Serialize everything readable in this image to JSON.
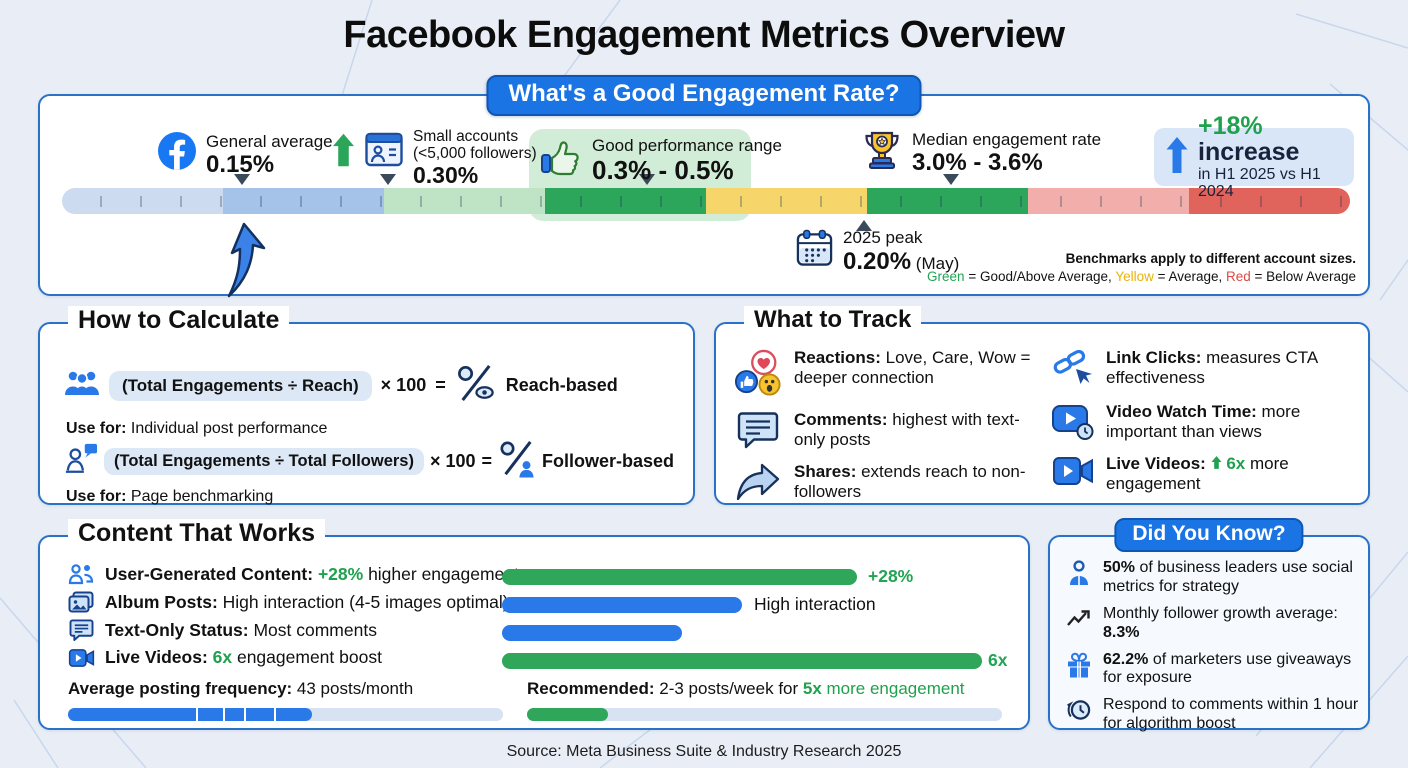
{
  "title": "Facebook Engagement Metrics Overview",
  "footer": "Source: Meta Business Suite & Industry Research 2025",
  "scale_section": {
    "badge": "What's a Good Engagement Rate?",
    "markers": {
      "general": {
        "label": "General average",
        "value": "0.15%"
      },
      "small": {
        "line1": "Small accounts",
        "line2": "(<5,000 followers)",
        "value": "0.30%"
      },
      "good": {
        "label": "Good performance range",
        "value": "0.3% - 0.5%"
      },
      "median": {
        "label": "Median engagement rate",
        "value": "3.0% - 3.6%"
      },
      "increase": {
        "pct": "+18%",
        "word": " increase",
        "sub": "in H1 2025 vs H1 2024"
      },
      "peak": {
        "label": "2025 peak",
        "value": "0.20%",
        "suffix": " (May)"
      }
    },
    "note_bold": "Benchmarks apply to different account sizes.",
    "note": {
      "g": "Green",
      "g2": " = Good/Above Average, ",
      "y": "Yellow",
      "y2": " = Average, ",
      "r": "Red",
      "r2": " = Below Average"
    }
  },
  "calc": {
    "heading": "How to Calculate",
    "rows": [
      {
        "formula": "(Total Engagements ÷ Reach)",
        "times": "× 100",
        "equals": "=",
        "result": "Reach-based",
        "use_label": "Use for:",
        "use_text": " Individual post performance"
      },
      {
        "formula": "(Total Engagements ÷ Total Followers)",
        "times": "× 100",
        "equals": "=",
        "result": "Follower-based",
        "use_label": "Use for:",
        "use_text": " Page benchmarking"
      }
    ]
  },
  "track": {
    "heading": "What to Track",
    "items": [
      {
        "bold": "Reactions:",
        "text": " Love, Care, Wow = deeper connection"
      },
      {
        "bold": "Comments:",
        "text": " highest with text-only posts"
      },
      {
        "bold": "Shares:",
        "text": " extends reach to non-followers"
      },
      {
        "bold": "Link Clicks:",
        "text": " measures CTA effectiveness"
      },
      {
        "bold": "Video Watch Time:",
        "text": " more important than views"
      },
      {
        "bold": "Live Videos:",
        "green": "6x",
        "text": " more engagement"
      }
    ]
  },
  "content": {
    "heading": "Content That Works",
    "rows": [
      {
        "bold": "User-Generated Content:",
        "green": " +28%",
        "text": " higher engagement",
        "bar_label": "+28%"
      },
      {
        "bold": "Album Posts:",
        "green": "",
        "text": " High interaction (4-5 images optimal)",
        "bar_label": "High interaction"
      },
      {
        "bold": "Text-Only Status:",
        "green": "",
        "text": " Most comments",
        "bar_label": ""
      },
      {
        "bold": "Live Videos:",
        "green": " 6x",
        "text": " engagement boost",
        "bar_label": "6x"
      }
    ],
    "frequency": {
      "bold": "Average posting frequency:",
      "text": " 43 posts/month"
    },
    "recommended": {
      "bold": "Recommended:",
      "text": " 2-3 posts/week for ",
      "green_bold": "5x",
      "green_text": " more engagement"
    }
  },
  "dyk": {
    "badge": "Did You Know?",
    "items": [
      {
        "pre": "",
        "bold": "50%",
        "text": " of business leaders use social metrics for strategy"
      },
      {
        "pre": "Monthly follower growth average: ",
        "bold": "8.3%",
        "text": ""
      },
      {
        "pre": "",
        "bold": "62.2%",
        "text": " of marketers use giveaways for exposure"
      },
      {
        "pre": "",
        "bold": "",
        "text": "Respond to comments within 1 hour for algorithm boost"
      }
    ]
  },
  "chart_data": [
    {
      "type": "scale",
      "title": "What's a Good Engagement Rate?",
      "unit": "engagement rate benchmark scale",
      "segments": [
        {
          "color": "#ccdbf0",
          "meaning": "low (light blue)"
        },
        {
          "color": "#a5c2e9",
          "meaning": "low (blue)"
        },
        {
          "color": "#bfe3c5",
          "meaning": "average (light green)"
        },
        {
          "color": "#2ba65a",
          "meaning": "good (green)"
        },
        {
          "color": "#f6d66b",
          "meaning": "average (yellow)"
        },
        {
          "color": "#2ba65a",
          "meaning": "good (green)"
        },
        {
          "color": "#f2aeaa",
          "meaning": "below average (pink)"
        },
        {
          "color": "#e0635c",
          "meaning": "below average (red)"
        }
      ],
      "markers": [
        {
          "label": "General average",
          "value": "0.15%",
          "position_pct": 14,
          "direction": "down"
        },
        {
          "label": "Small accounts (<5,000 followers)",
          "value": "0.30%",
          "position_pct": 25.3,
          "direction": "down"
        },
        {
          "label": "Good performance range",
          "value": "0.3% - 0.5%",
          "position_pct": 45.4,
          "direction": "down"
        },
        {
          "label": "2025 peak (May)",
          "value": "0.20%",
          "position_pct": 62.3,
          "direction": "up"
        },
        {
          "label": "Median engagement rate",
          "value": "3.0% - 3.6%",
          "position_pct": 69,
          "direction": "down"
        },
        {
          "label": "increase in H1 2025 vs H1 2024",
          "value": "+18%"
        }
      ],
      "legend": "Green = Good/Above Average, Yellow = Average, Red = Below Average"
    },
    {
      "type": "bar",
      "categories": [
        "User-Generated Content",
        "Album Posts",
        "Text-Only Status",
        "Live Videos"
      ],
      "values": [
        71,
        48,
        36,
        96
      ],
      "value_labels": [
        "+28%",
        "High interaction",
        "",
        "6x"
      ],
      "colors": [
        "#2fa65a",
        "#2a79e8",
        "#2a79e8",
        "#2fa65a"
      ],
      "xlabel": "",
      "ylabel": "relative engagement (percent of track)",
      "legend_position": "none"
    },
    {
      "type": "bar",
      "categories": [
        "Average posting frequency (43 posts/month)",
        "Recommended (2-3 posts/week, 5x more engagement)"
      ],
      "values": [
        56,
        17
      ],
      "colors": [
        "#2a79e8",
        "#2fa65a"
      ],
      "xlabel": "",
      "ylabel": "percent of track filled"
    }
  ]
}
